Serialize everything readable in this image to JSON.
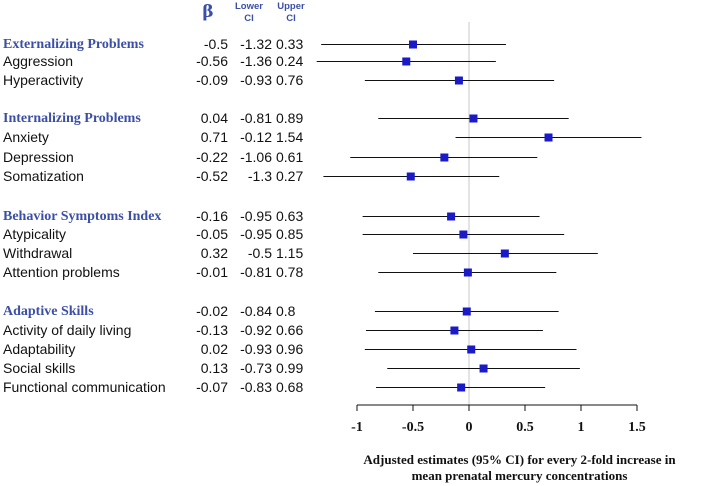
{
  "header": {
    "beta": "β",
    "lower_ci": "Lower CI",
    "upper_ci": "Upper CI"
  },
  "chart_data": {
    "type": "forest",
    "xlabel_line1": "Adjusted estimates (95% CI) for every 2-fold increase in",
    "xlabel_line2": "mean prenatal mercury concentrations",
    "xlim": [
      -1,
      1.5
    ],
    "xticks": [
      "-1",
      "-0.5",
      "0",
      "0.5",
      "1",
      "1.5"
    ],
    "xtick_values": [
      -1,
      -0.5,
      0,
      0.5,
      1,
      1.5
    ],
    "reference_line": 0,
    "marker_color": "#1a1ac8",
    "label_color": "#3b4fa6",
    "rows": [
      {
        "label": "Externalizing Problems",
        "group": true,
        "beta": "-0.5",
        "lower": "-1.32",
        "upper": "0.33",
        "b": -0.5,
        "l": -1.32,
        "u": 0.33
      },
      {
        "label": "Aggression",
        "group": false,
        "beta": "-0.56",
        "lower": "-1.36",
        "upper": "0.24",
        "b": -0.56,
        "l": -1.36,
        "u": 0.24
      },
      {
        "label": "Hyperactivity",
        "group": false,
        "beta": "-0.09",
        "lower": "-0.93",
        "upper": "0.76",
        "b": -0.09,
        "l": -0.93,
        "u": 0.76
      },
      {
        "label": "Internalizing Problems",
        "group": true,
        "beta": "0.04",
        "lower": "-0.81",
        "upper": "0.89",
        "b": 0.04,
        "l": -0.81,
        "u": 0.89
      },
      {
        "label": "Anxiety",
        "group": false,
        "beta": "0.71",
        "lower": "-0.12",
        "upper": "1.54",
        "b": 0.71,
        "l": -0.12,
        "u": 1.54
      },
      {
        "label": "Depression",
        "group": false,
        "beta": "-0.22",
        "lower": "-1.06",
        "upper": "0.61",
        "b": -0.22,
        "l": -1.06,
        "u": 0.61
      },
      {
        "label": "Somatization",
        "group": false,
        "beta": "-0.52",
        "lower": "-1.3",
        "upper": "0.27",
        "b": -0.52,
        "l": -1.3,
        "u": 0.27
      },
      {
        "label": "Behavior Symptoms Index",
        "group": true,
        "beta": "-0.16",
        "lower": "-0.95",
        "upper": "0.63",
        "b": -0.16,
        "l": -0.95,
        "u": 0.63
      },
      {
        "label": "Atypicality",
        "group": false,
        "beta": "-0.05",
        "lower": "-0.95",
        "upper": "0.85",
        "b": -0.05,
        "l": -0.95,
        "u": 0.85
      },
      {
        "label": "Withdrawal",
        "group": false,
        "beta": "0.32",
        "lower": "-0.5",
        "upper": "1.15",
        "b": 0.32,
        "l": -0.5,
        "u": 1.15
      },
      {
        "label": "Attention problems",
        "group": false,
        "beta": "-0.01",
        "lower": "-0.81",
        "upper": "0.78",
        "b": -0.01,
        "l": -0.81,
        "u": 0.78
      },
      {
        "label": "Adaptive Skills",
        "group": true,
        "beta": "-0.02",
        "lower": "-0.84",
        "upper": "0.8",
        "b": -0.02,
        "l": -0.84,
        "u": 0.8
      },
      {
        "label": "Activity of daily living",
        "group": false,
        "beta": "-0.13",
        "lower": "-0.92",
        "upper": "0.66",
        "b": -0.13,
        "l": -0.92,
        "u": 0.66
      },
      {
        "label": "Adaptability",
        "group": false,
        "beta": "0.02",
        "lower": "-0.93",
        "upper": "0.96",
        "b": 0.02,
        "l": -0.93,
        "u": 0.96
      },
      {
        "label": "Social skills",
        "group": false,
        "beta": "0.13",
        "lower": "-0.73",
        "upper": "0.99",
        "b": 0.13,
        "l": -0.73,
        "u": 0.99
      },
      {
        "label": "Functional communication",
        "group": false,
        "beta": "-0.07",
        "lower": "-0.83",
        "upper": "0.68",
        "b": -0.07,
        "l": -0.83,
        "u": 0.68
      }
    ]
  }
}
